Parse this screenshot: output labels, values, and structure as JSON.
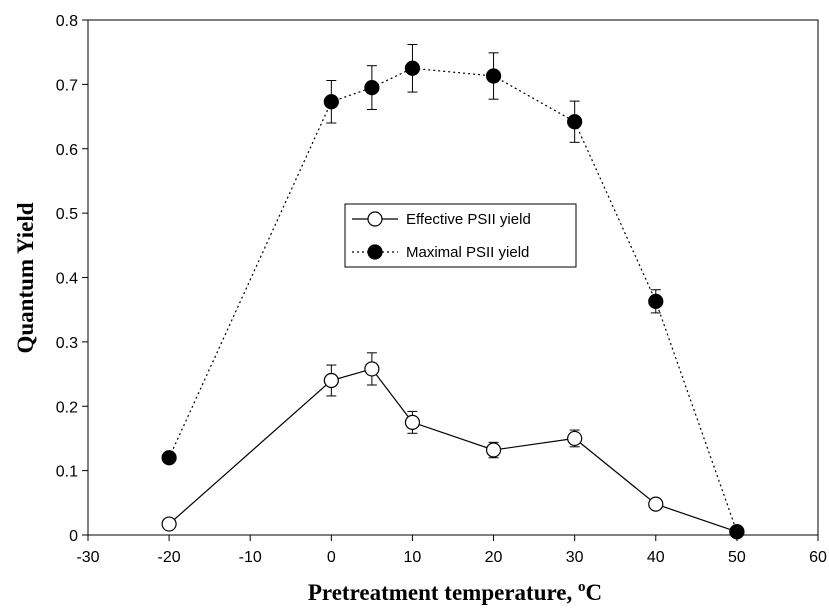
{
  "chart_data": {
    "type": "line",
    "xlabel": "Pretreatment temperature, ",
    "xlabel_sup": "o",
    "xlabel_unit": "C",
    "ylabel": "Quantum Yield",
    "xlim": [
      -30,
      60
    ],
    "ylim": [
      0,
      0.8
    ],
    "xticks": [
      -30,
      -20,
      -10,
      0,
      10,
      20,
      30,
      40,
      50,
      60
    ],
    "yticks": [
      0,
      0.1,
      0.2,
      0.3,
      0.4,
      0.5,
      0.6,
      0.7,
      0.8
    ],
    "xtick_labels": [
      "-30",
      "-20",
      "-10",
      "0",
      "10",
      "20",
      "30",
      "40",
      "50",
      "60"
    ],
    "ytick_labels": [
      "0",
      "0.1",
      "0.2",
      "0.3",
      "0.4",
      "0.5",
      "0.6",
      "0.7",
      "0.8"
    ],
    "grid": false,
    "legend_position": "center",
    "series": [
      {
        "name": "Effective PSII yield",
        "line_style": "solid",
        "marker": "open-circle",
        "x": [
          -20,
          0,
          5,
          10,
          20,
          30,
          40,
          50
        ],
        "y": [
          0.017,
          0.24,
          0.258,
          0.175,
          0.132,
          0.15,
          0.048,
          0.005
        ],
        "error": [
          0,
          0.024,
          0.025,
          0.017,
          0.012,
          0.013,
          0,
          0
        ]
      },
      {
        "name": "Maximal PSII yield",
        "line_style": "dotted",
        "marker": "filled-circle",
        "x": [
          -20,
          0,
          5,
          10,
          20,
          30,
          40,
          50
        ],
        "y": [
          0.12,
          0.673,
          0.695,
          0.725,
          0.713,
          0.642,
          0.363,
          0.005
        ],
        "error": [
          0,
          0.033,
          0.034,
          0.037,
          0.036,
          0.032,
          0.018,
          0
        ]
      }
    ]
  }
}
